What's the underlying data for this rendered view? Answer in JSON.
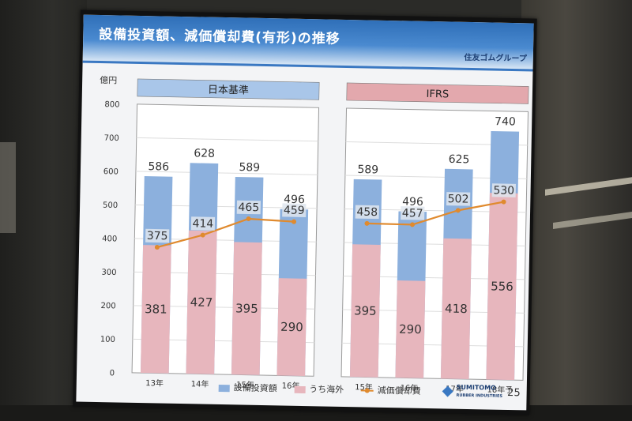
{
  "slide": {
    "title": "設備投資額、減価償却費(有形)の推移",
    "brand": "住友ゴムグループ",
    "unit_label": "億円",
    "page_number": "25",
    "logo_text_1": "SUMITOMO",
    "logo_text_2": "RUBBER INDUSTRIES"
  },
  "legend": {
    "capex": "設備投資額",
    "overseas": "うち海外",
    "depreciation": "減価償却費"
  },
  "colors": {
    "capex": "#8cb0dd",
    "overseas": "#e7b6bd",
    "depreciation": "#e08a2e",
    "panel_jp": "#a9c6e9",
    "panel_ifrs": "#e3a8ad"
  },
  "chart_data": [
    {
      "type": "bar",
      "panel_label": "日本基準",
      "categories": [
        "13年",
        "14年",
        "15年",
        "16年"
      ],
      "ylim": [
        0,
        800
      ],
      "yticks": [
        0,
        100,
        200,
        300,
        400,
        500,
        600,
        700,
        800
      ],
      "series": [
        {
          "name": "設備投資額",
          "values": [
            586,
            628,
            589,
            496
          ]
        },
        {
          "name": "うち海外",
          "values": [
            381,
            427,
            395,
            290
          ]
        },
        {
          "name": "減価償却費",
          "values": [
            375,
            414,
            465,
            459
          ]
        }
      ]
    },
    {
      "type": "bar",
      "panel_label": "IFRS",
      "categories": [
        "15年",
        "16年",
        "17年",
        "18年予"
      ],
      "ylim": [
        0,
        800
      ],
      "series": [
        {
          "name": "設備投資額",
          "values": [
            589,
            496,
            625,
            740
          ]
        },
        {
          "name": "うち海外",
          "values": [
            395,
            290,
            418,
            556
          ]
        },
        {
          "name": "減価償却費",
          "values": [
            458,
            457,
            502,
            530
          ]
        }
      ]
    }
  ]
}
